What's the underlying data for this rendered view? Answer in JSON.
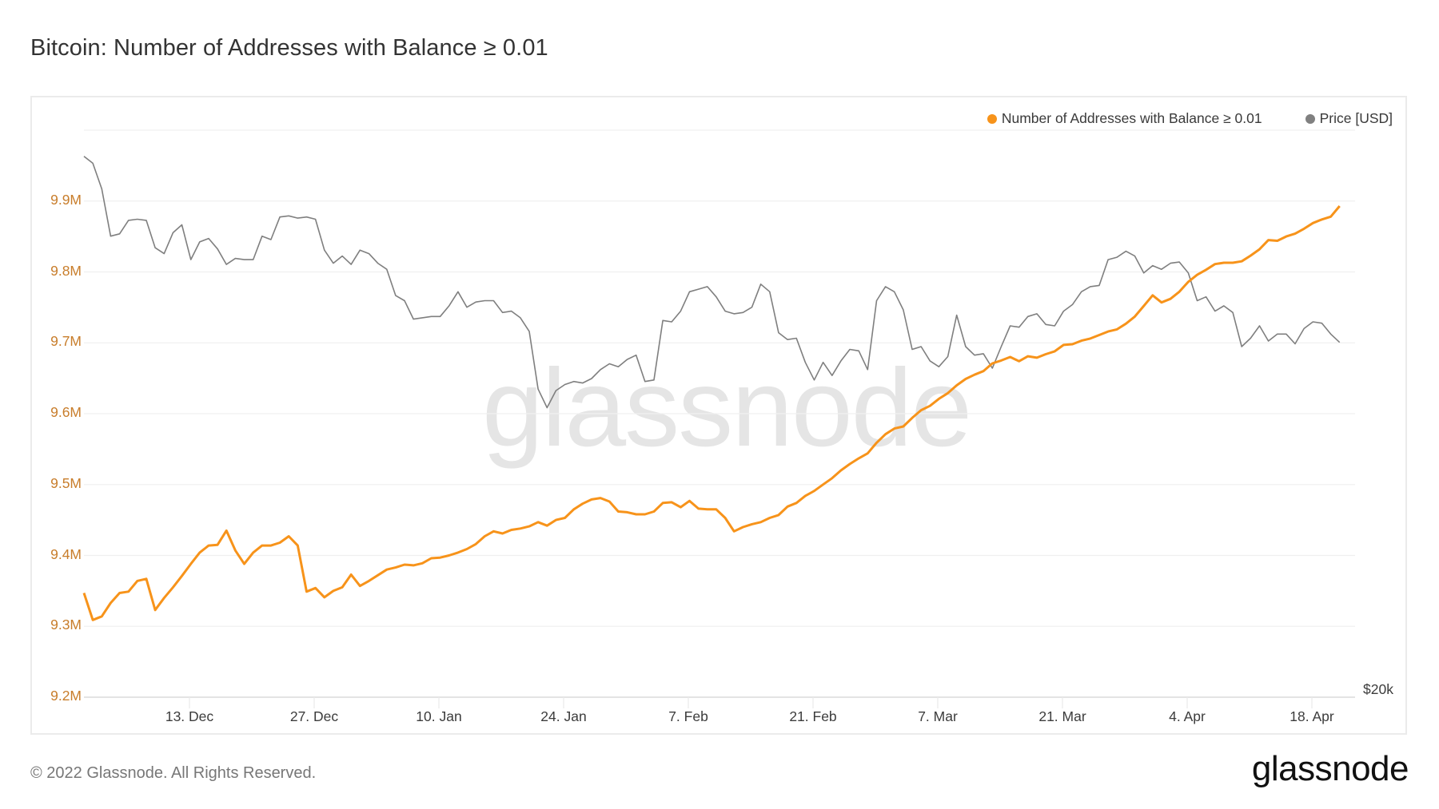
{
  "header": {
    "title": "Bitcoin: Number of Addresses with Balance ≥ 0.01"
  },
  "legend": [
    {
      "label": "Number of Addresses with Balance ≥ 0.01",
      "color": "#f7931a"
    },
    {
      "label": "Price [USD]",
      "color": "#808080"
    }
  ],
  "watermark": "glassnode",
  "footer": {
    "copyright": "© 2022 Glassnode. All Rights Reserved.",
    "logo": "glassnode"
  },
  "colors": {
    "accent": "#f7931a",
    "price": "#7f7f7f",
    "yaxis_label": "#c87d2b",
    "grid": "#efefef"
  },
  "chart_data": {
    "type": "line",
    "title": "Bitcoin: Number of Addresses with Balance ≥ 0.01",
    "xlabel": "",
    "ylabel": "Number of Addresses",
    "y2label": "Price [USD]",
    "ylim": [
      9.2,
      10.0
    ],
    "y_ticks": [
      "9.2M",
      "9.3M",
      "9.4M",
      "9.5M",
      "9.6M",
      "9.7M",
      "9.8M",
      "9.9M"
    ],
    "y2_ticks": [
      "$20k"
    ],
    "y2_scale": "log",
    "x_ticks": [
      "13. Dec",
      "27. Dec",
      "10. Jan",
      "24. Jan",
      "7. Feb",
      "21. Feb",
      "7. Mar",
      "21. Mar",
      "4. Apr",
      "18. Apr"
    ],
    "x_range": [
      "2021-12-01",
      "2022-04-21"
    ],
    "grid": true,
    "legend_position": "top-right",
    "series": [
      {
        "name": "Number of Addresses with Balance ≥ 0.01",
        "unit": "M",
        "axis": "left",
        "values": [
          9.347,
          9.309,
          9.314,
          9.333,
          9.347,
          9.349,
          9.364,
          9.367,
          9.323,
          9.34,
          9.355,
          9.371,
          9.388,
          9.404,
          9.414,
          9.415,
          9.435,
          9.407,
          9.388,
          9.404,
          9.414,
          9.414,
          9.418,
          9.427,
          9.414,
          9.349,
          9.354,
          9.341,
          9.35,
          9.355,
          9.373,
          9.357,
          9.364,
          9.372,
          9.38,
          9.383,
          9.387,
          9.386,
          9.389,
          9.396,
          9.397,
          9.4,
          9.404,
          9.409,
          9.416,
          9.427,
          9.434,
          9.431,
          9.436,
          9.438,
          9.441,
          9.447,
          9.442,
          9.45,
          9.453,
          9.465,
          9.473,
          9.479,
          9.481,
          9.476,
          9.462,
          9.461,
          9.458,
          9.458,
          9.462,
          9.474,
          9.475,
          9.468,
          9.477,
          9.466,
          9.465,
          9.465,
          9.453,
          9.434,
          9.44,
          9.444,
          9.447,
          9.453,
          9.457,
          9.469,
          9.474,
          9.484,
          9.491,
          9.5,
          9.509,
          9.52,
          9.529,
          9.537,
          9.544,
          9.559,
          9.571,
          9.579,
          9.582,
          9.594,
          9.605,
          9.611,
          9.621,
          9.629,
          9.64,
          9.649,
          9.655,
          9.66,
          9.671,
          9.675,
          9.68,
          9.674,
          9.681,
          9.679,
          9.684,
          9.688,
          9.697,
          9.698,
          9.703,
          9.706,
          9.711,
          9.716,
          9.719,
          9.727,
          9.737,
          9.752,
          9.767,
          9.757,
          9.762,
          9.772,
          9.786,
          9.796,
          9.803,
          9.811,
          9.813,
          9.813,
          9.815,
          9.823,
          9.832,
          9.845,
          9.844,
          9.85,
          9.854,
          9.861,
          9.869,
          9.874,
          9.878,
          9.893
        ]
      },
      {
        "name": "Price [USD]",
        "unit": "USD",
        "axis": "right",
        "values": [
          54500,
          53800,
          51300,
          47000,
          47200,
          48400,
          48500,
          48400,
          46000,
          45500,
          47300,
          48000,
          45000,
          46500,
          46800,
          45900,
          44600,
          45100,
          45000,
          45000,
          47000,
          46700,
          48700,
          48800,
          48600,
          48700,
          48500,
          45800,
          44700,
          45300,
          44600,
          45800,
          45500,
          44700,
          44200,
          42100,
          41700,
          40300,
          40400,
          40500,
          40500,
          41300,
          42400,
          41200,
          41600,
          41700,
          41700,
          40800,
          40900,
          40400,
          39400,
          35400,
          34200,
          35300,
          35700,
          35900,
          35800,
          36100,
          36700,
          37100,
          36900,
          37400,
          37700,
          35900,
          36000,
          40200,
          40100,
          40900,
          42400,
          42600,
          42800,
          42000,
          40900,
          40700,
          40800,
          41200,
          43000,
          42400,
          39300,
          38800,
          38900,
          37200,
          36000,
          37200,
          36300,
          37300,
          38100,
          38000,
          36700,
          41700,
          42800,
          42400,
          41000,
          38100,
          38300,
          37300,
          36900,
          37600,
          40600,
          38300,
          37700,
          37800,
          36800,
          38300,
          39800,
          39700,
          40500,
          40700,
          39900,
          39800,
          40900,
          41400,
          42400,
          42800,
          42900,
          45000,
          45200,
          45700,
          45300,
          43900,
          44500,
          44200,
          44700,
          44800,
          43900,
          41700,
          42000,
          40900,
          41300,
          40800,
          38300,
          38900,
          39800,
          38700,
          39200,
          39200,
          38500,
          39600,
          40100,
          40000,
          39200,
          38600
        ]
      }
    ]
  }
}
